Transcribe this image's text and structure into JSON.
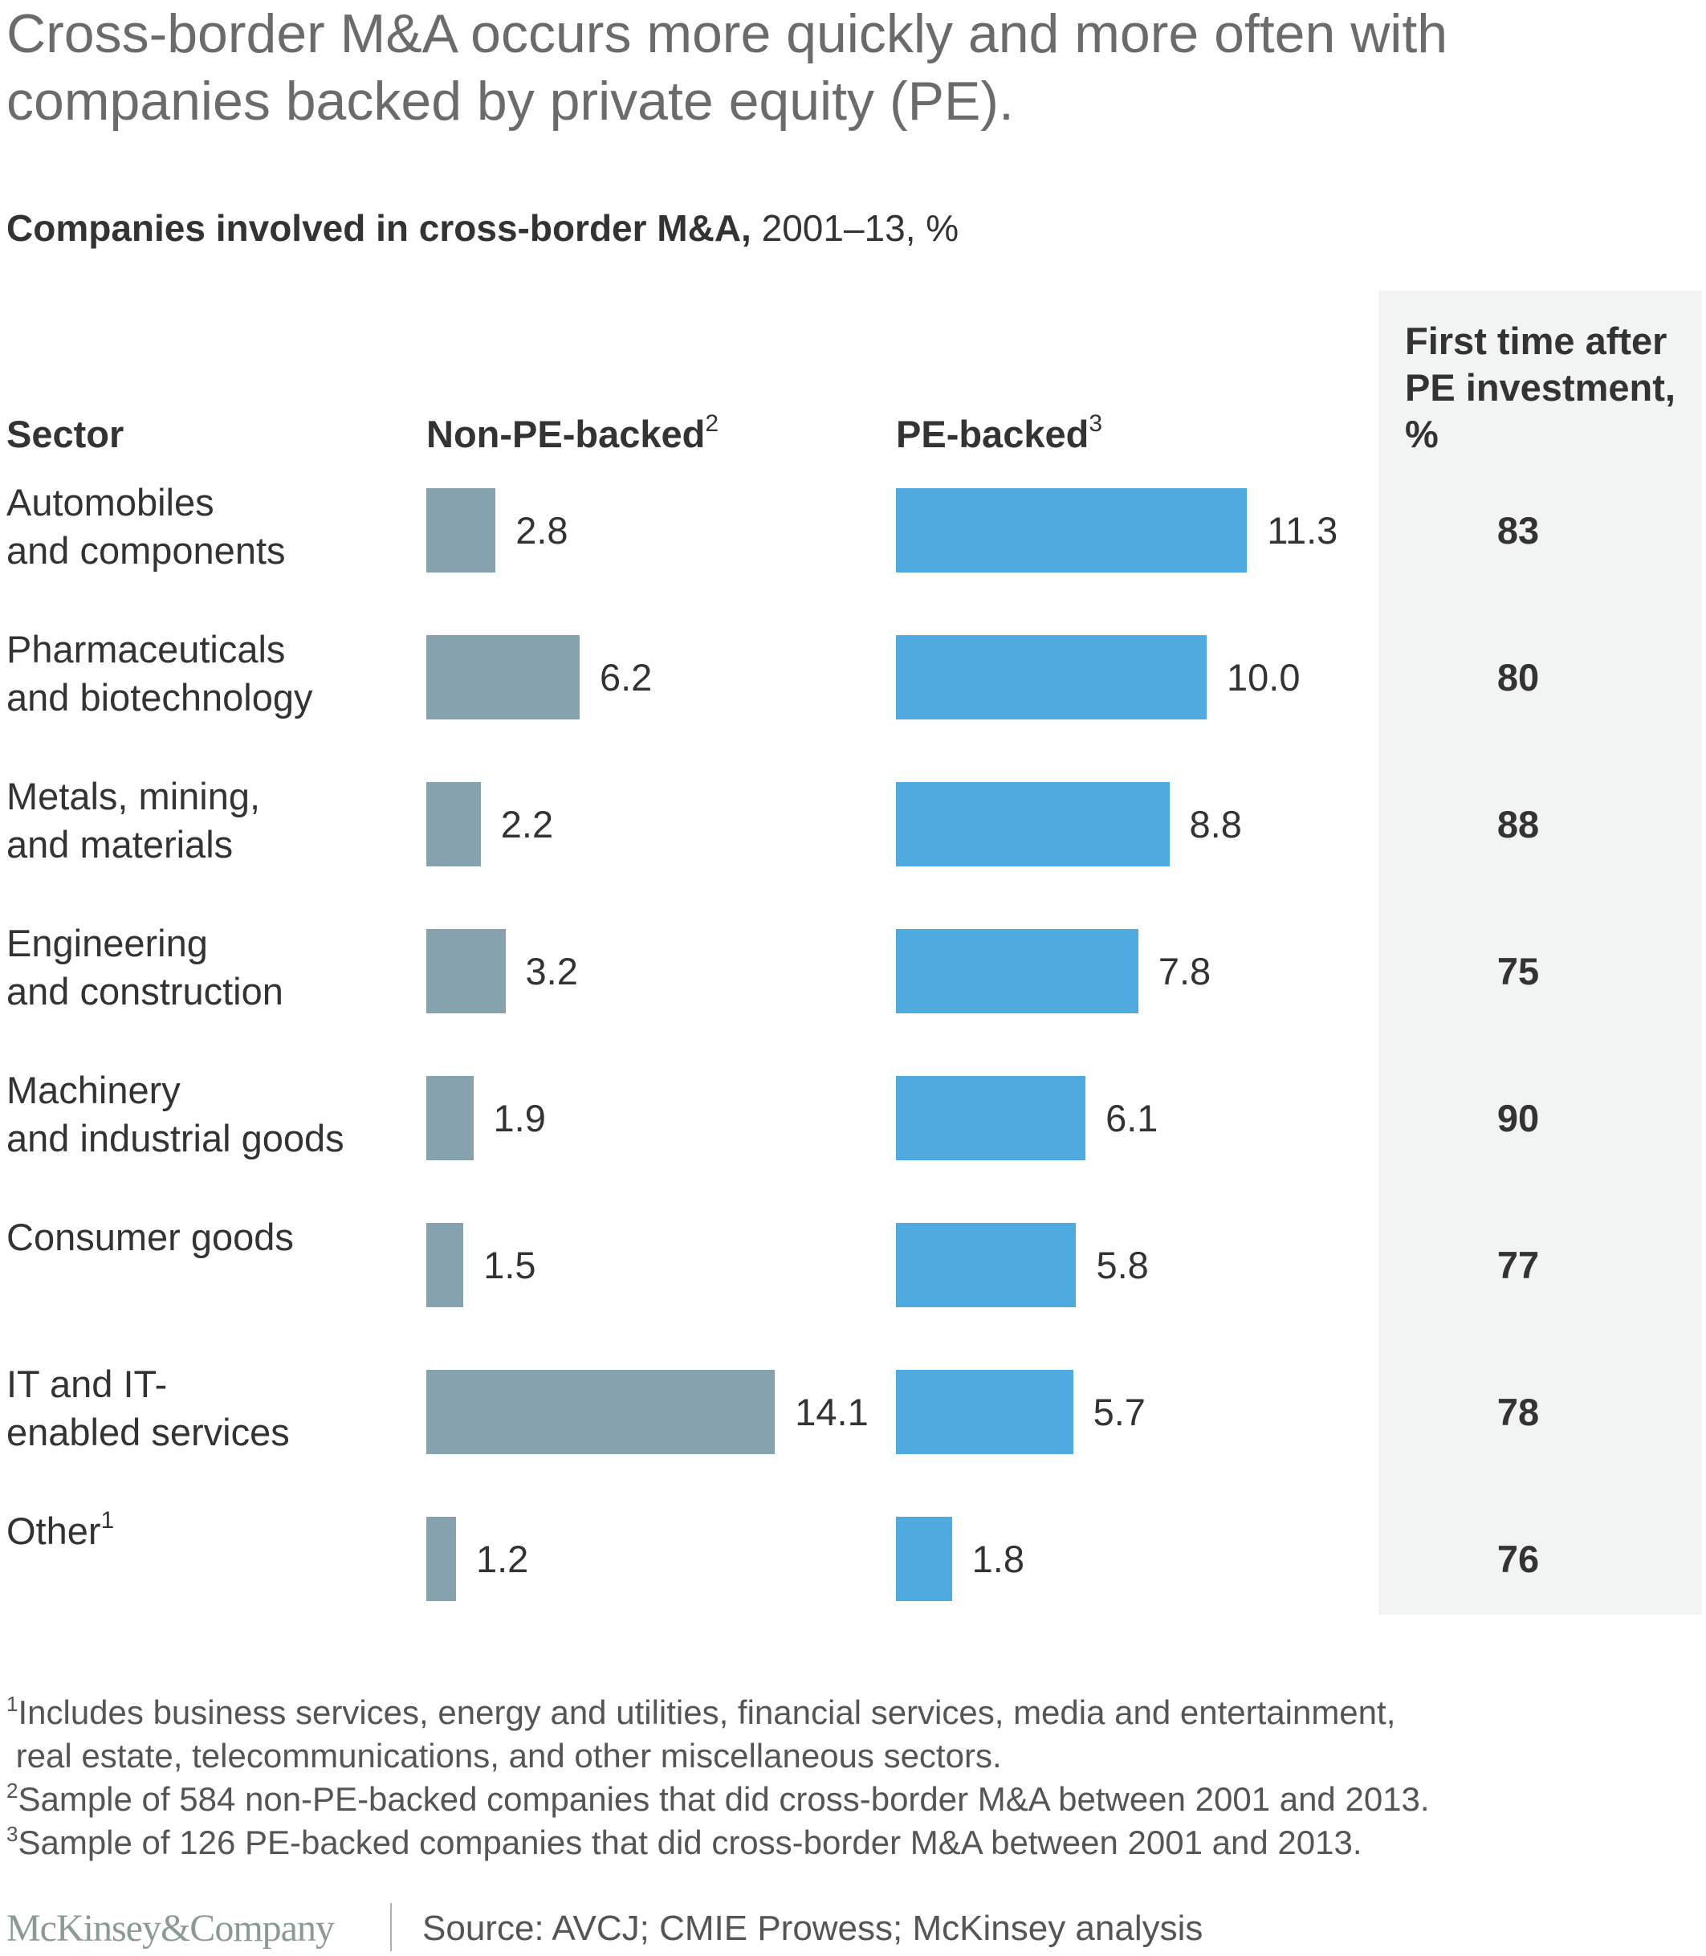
{
  "title_lines": [
    "Cross-border M&A occurs more quickly and more often with",
    "companies backed by private equity (PE)."
  ],
  "subtitle": {
    "bold": "Companies involved in cross-border M&A,",
    "regular": " 2001–13, %"
  },
  "headers": {
    "sector": "Sector",
    "non_pe": "Non-PE-backed",
    "non_pe_note": "2",
    "pe": "PE-backed",
    "pe_note": "3",
    "first_time": "First time after PE investment, %"
  },
  "colors": {
    "non_pe_bar": "#86a2ae",
    "pe_bar": "#4fabdf",
    "panel_bg": "#f2f3f3"
  },
  "chart_data": {
    "type": "bar",
    "orientation": "horizontal",
    "title": "Companies involved in cross-border M&A, 2001–13, %",
    "categories": [
      "Automobiles and components",
      "Pharmaceuticals and biotechnology",
      "Metals, mining, and materials",
      "Engineering and construction",
      "Machinery and industrial goods",
      "Consumer goods",
      "IT and IT-enabled services",
      "Other"
    ],
    "category_display": [
      {
        "lines": [
          "Automobiles",
          "and components"
        ],
        "note": ""
      },
      {
        "lines": [
          "Pharmaceuticals",
          "and biotechnology"
        ],
        "note": ""
      },
      {
        "lines": [
          "Metals, mining,",
          "and materials"
        ],
        "note": ""
      },
      {
        "lines": [
          "Engineering",
          "and construction"
        ],
        "note": ""
      },
      {
        "lines": [
          "Machinery",
          "and industrial goods"
        ],
        "note": ""
      },
      {
        "lines": [
          "Consumer goods"
        ],
        "note": ""
      },
      {
        "lines": [
          "IT and IT-",
          "enabled services"
        ],
        "note": ""
      },
      {
        "lines": [
          "Other"
        ],
        "note": "1"
      }
    ],
    "series": [
      {
        "name": "Non-PE-backed",
        "values": [
          2.8,
          6.2,
          2.2,
          3.2,
          1.9,
          1.5,
          14.1,
          1.2
        ],
        "labels": [
          "2.8",
          "6.2",
          "2.2",
          "3.2",
          "1.9",
          "1.5",
          "14.1",
          "1.2"
        ]
      },
      {
        "name": "PE-backed",
        "values": [
          11.3,
          10.0,
          8.8,
          7.8,
          6.1,
          5.8,
          5.7,
          1.8
        ],
        "labels": [
          "11.3",
          "10.0",
          "8.8",
          "7.8",
          "6.1",
          "5.8",
          "5.7",
          "1.8"
        ]
      }
    ],
    "first_time_after_pe": {
      "name": "First time after PE investment, %",
      "values": [
        83,
        80,
        88,
        75,
        90,
        77,
        78,
        76
      ]
    },
    "xlabel": "",
    "ylabel": "",
    "grid": false
  },
  "footnotes": [
    {
      "mark": "1",
      "lines": [
        "Includes business services, energy and utilities, financial services, media and entertainment,",
        " real estate, telecommunications, and other miscellaneous sectors."
      ]
    },
    {
      "mark": "2",
      "lines": [
        "Sample of 584 non-PE-backed companies that did cross-border M&A between 2001 and 2013."
      ]
    },
    {
      "mark": "3",
      "lines": [
        "Sample of 126 PE-backed companies that did cross-border M&A between 2001 and 2013."
      ]
    }
  ],
  "footer": {
    "logo": "McKinsey&Company",
    "source": "Source: AVCJ; CMIE Prowess; McKinsey analysis"
  }
}
